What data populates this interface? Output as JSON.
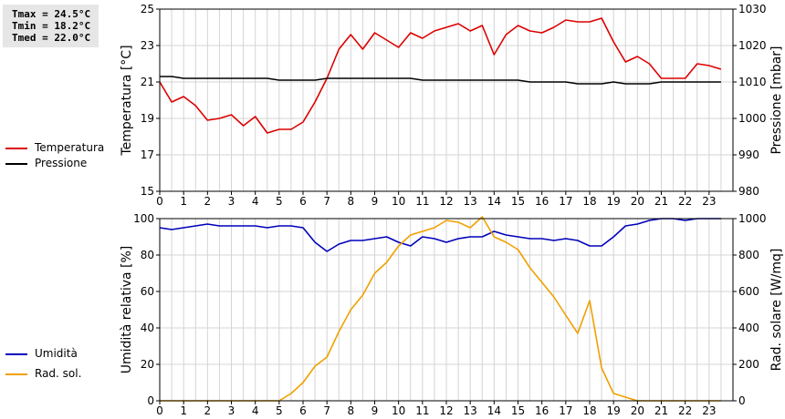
{
  "stats": {
    "tmax": "Tmax = 24.5°C",
    "tmin": "Tmin = 18.2°C",
    "tmed": "Tmed = 22.0°C"
  },
  "legend_top": [
    {
      "label": "Temperatura",
      "color": "#dd0000"
    },
    {
      "label": "Pressione",
      "color": "#000000"
    }
  ],
  "legend_bottom": [
    {
      "label": "Umidità",
      "color": "#0000bb"
    },
    {
      "label": "Rad. sol.",
      "color": "#f0a000"
    }
  ],
  "chart_data": [
    {
      "type": "line",
      "xlim": [
        0,
        24
      ],
      "x_ticks": [
        0,
        1,
        2,
        3,
        4,
        5,
        6,
        7,
        8,
        9,
        10,
        11,
        12,
        13,
        14,
        15,
        16,
        17,
        18,
        19,
        20,
        21,
        22,
        23
      ],
      "ylabel": "Temperatura [°C]",
      "ylim": [
        15,
        25
      ],
      "y_ticks": [
        15,
        17,
        19,
        21,
        23,
        25
      ],
      "y2label": "Pressione [mbar]",
      "y2lim": [
        980,
        1030
      ],
      "y2_ticks": [
        980,
        990,
        1000,
        1010,
        1020,
        1030
      ],
      "grid": true,
      "series": [
        {
          "name": "Temperatura",
          "axis": "left",
          "color": "#dd0000",
          "x": [
            0,
            0.5,
            1,
            1.5,
            2,
            2.5,
            3,
            3.5,
            4,
            4.5,
            5,
            5.5,
            6,
            6.5,
            7,
            7.5,
            8,
            8.5,
            9,
            9.5,
            10,
            10.5,
            11,
            11.5,
            12,
            12.5,
            13,
            13.5,
            14,
            14.5,
            15,
            15.5,
            16,
            16.5,
            17,
            17.5,
            18,
            18.5,
            19,
            19.5,
            20,
            20.5,
            21,
            21.5,
            22,
            22.5,
            23,
            23.5
          ],
          "values": [
            21.0,
            19.9,
            20.2,
            19.7,
            18.9,
            19.0,
            19.2,
            18.6,
            19.1,
            18.2,
            18.4,
            18.4,
            18.8,
            19.9,
            21.2,
            22.8,
            23.6,
            22.8,
            23.7,
            23.3,
            22.9,
            23.7,
            23.4,
            23.8,
            24.0,
            24.2,
            23.8,
            24.1,
            22.5,
            23.6,
            24.1,
            23.8,
            23.7,
            24.0,
            24.4,
            24.3,
            24.3,
            24.5,
            23.2,
            22.1,
            22.4,
            22.0,
            21.2,
            21.2,
            21.2,
            22.0,
            21.9,
            21.7
          ]
        },
        {
          "name": "Pressione",
          "axis": "right",
          "color": "#000000",
          "x": [
            0,
            0.5,
            1,
            1.5,
            2,
            2.5,
            3,
            3.5,
            4,
            4.5,
            5,
            5.5,
            6,
            6.5,
            7,
            7.5,
            8,
            8.5,
            9,
            9.5,
            10,
            10.5,
            11,
            11.5,
            12,
            12.5,
            13,
            13.5,
            14,
            14.5,
            15,
            15.5,
            16,
            16.5,
            17,
            17.5,
            18,
            18.5,
            19,
            19.5,
            20,
            20.5,
            21,
            21.5,
            22,
            22.5,
            23,
            23.5
          ],
          "values": [
            1011.5,
            1011.5,
            1011,
            1011,
            1011,
            1011,
            1011,
            1011,
            1011,
            1011,
            1010.5,
            1010.5,
            1010.5,
            1010.5,
            1011,
            1011,
            1011,
            1011,
            1011,
            1011,
            1011,
            1011,
            1010.5,
            1010.5,
            1010.5,
            1010.5,
            1010.5,
            1010.5,
            1010.5,
            1010.5,
            1010.5,
            1010,
            1010,
            1010,
            1010,
            1009.5,
            1009.5,
            1009.5,
            1010,
            1009.5,
            1009.5,
            1009.5,
            1010,
            1010,
            1010,
            1010,
            1010,
            1010
          ]
        }
      ]
    },
    {
      "type": "line",
      "xlim": [
        0,
        24
      ],
      "x_ticks": [
        0,
        1,
        2,
        3,
        4,
        5,
        6,
        7,
        8,
        9,
        10,
        11,
        12,
        13,
        14,
        15,
        16,
        17,
        18,
        19,
        20,
        21,
        22,
        23
      ],
      "ylabel": "Umidità relativa [%]",
      "ylim": [
        0,
        100
      ],
      "y_ticks": [
        0,
        20,
        40,
        60,
        80,
        100
      ],
      "y2label": "Rad. solare [W/mq]",
      "y2lim": [
        0,
        1000
      ],
      "y2_ticks": [
        0,
        200,
        400,
        600,
        800,
        1000
      ],
      "grid": true,
      "series": [
        {
          "name": "Umidità",
          "axis": "left",
          "color": "#0000bb",
          "x": [
            0,
            0.5,
            1,
            1.5,
            2,
            2.5,
            3,
            3.5,
            4,
            4.5,
            5,
            5.5,
            6,
            6.5,
            7,
            7.5,
            8,
            8.5,
            9,
            9.5,
            10,
            10.5,
            11,
            11.5,
            12,
            12.5,
            13,
            13.5,
            14,
            14.5,
            15,
            15.5,
            16,
            16.5,
            17,
            17.5,
            18,
            18.5,
            19,
            19.5,
            20,
            20.5,
            21,
            21.5,
            22,
            22.5,
            23,
            23.5
          ],
          "values": [
            95,
            94,
            95,
            96,
            97,
            96,
            96,
            96,
            96,
            95,
            96,
            96,
            95,
            87,
            82,
            86,
            88,
            88,
            89,
            90,
            87,
            85,
            90,
            89,
            87,
            89,
            90,
            90,
            93,
            91,
            90,
            89,
            89,
            88,
            89,
            88,
            85,
            85,
            90,
            96,
            97,
            99,
            100,
            100,
            99,
            100,
            100,
            100
          ]
        },
        {
          "name": "Rad. sol.",
          "axis": "right",
          "color": "#f0a000",
          "x": [
            0,
            0.5,
            1,
            1.5,
            2,
            2.5,
            3,
            3.5,
            4,
            4.5,
            5,
            5.5,
            6,
            6.5,
            7,
            7.5,
            8,
            8.5,
            9,
            9.5,
            10,
            10.5,
            11,
            11.5,
            12,
            12.5,
            13,
            13.5,
            14,
            14.5,
            15,
            15.5,
            16,
            16.5,
            17,
            17.5,
            18,
            18.5,
            19,
            19.5,
            20,
            20.5,
            21,
            21.5,
            22,
            22.5,
            23,
            23.5
          ],
          "values": [
            0,
            0,
            0,
            0,
            0,
            0,
            0,
            0,
            0,
            0,
            0,
            40,
            100,
            190,
            240,
            380,
            500,
            580,
            700,
            760,
            850,
            910,
            930,
            950,
            990,
            980,
            950,
            1010,
            900,
            870,
            830,
            730,
            650,
            570,
            470,
            370,
            550,
            180,
            40,
            20,
            0,
            0,
            0,
            0,
            0,
            0,
            0,
            0
          ]
        }
      ]
    }
  ]
}
